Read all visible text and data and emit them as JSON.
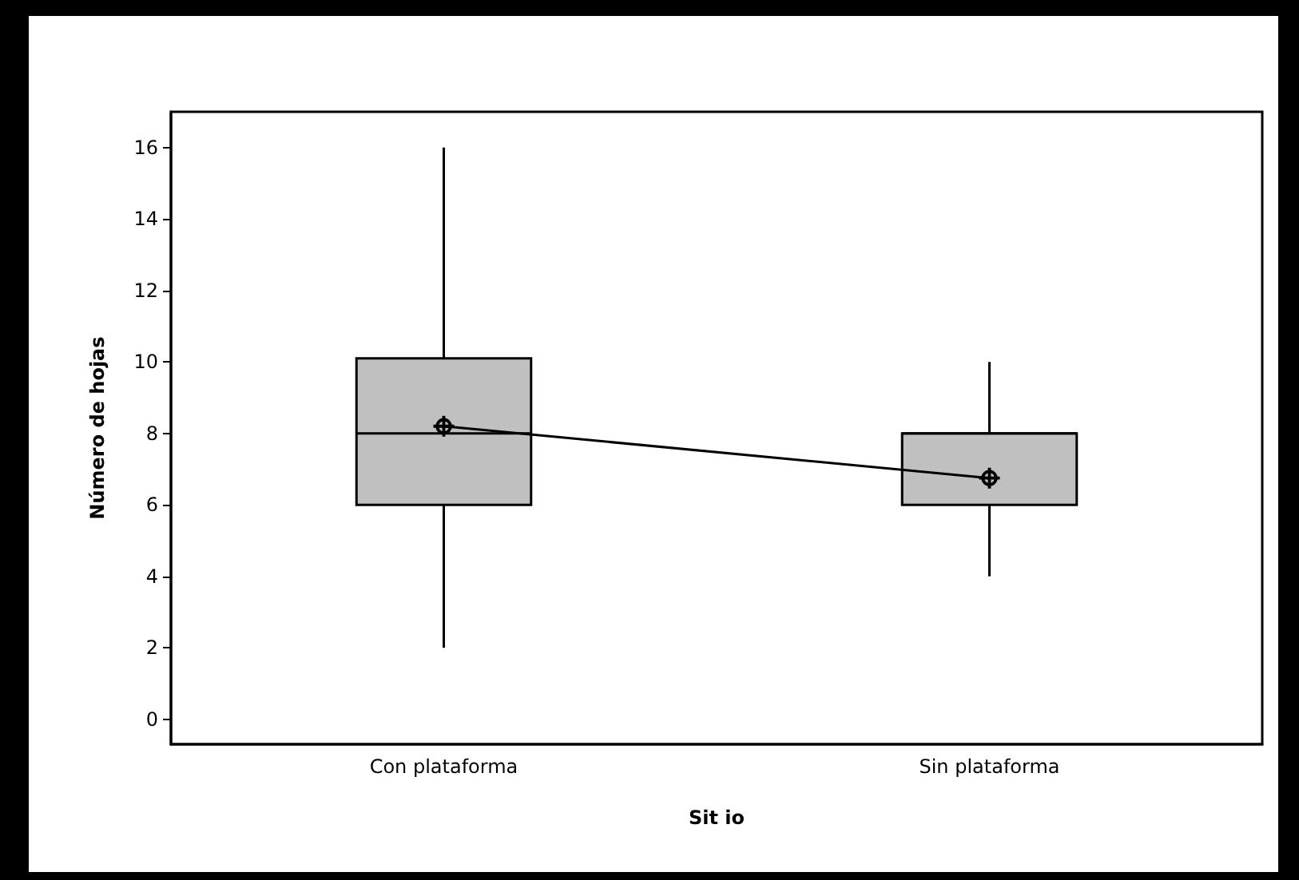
{
  "chart_data": {
    "type": "box",
    "xlabel": "Sit io",
    "ylabel": "Número de hojas",
    "categories": [
      "Con plataforma",
      "Sin plataforma"
    ],
    "color": "#c0c0c0",
    "boxes": [
      {
        "low": 2,
        "q1": 6,
        "median": 8,
        "q3": 10.1,
        "high": 16
      },
      {
        "low": 4,
        "q1": 6,
        "median": 8,
        "q3": 8,
        "high": 10
      }
    ],
    "series": [
      {
        "type": "line",
        "color": "#000000",
        "x": [
          "Con plataforma",
          "Sin plataforma"
        ],
        "values": [
          8.2,
          6.75
        ],
        "marker": "circle"
      }
    ],
    "ylim": [
      -0.7,
      17
    ],
    "yticks": [
      0,
      2,
      4,
      6,
      8,
      10,
      12,
      14,
      16
    ],
    "grid": false
  }
}
